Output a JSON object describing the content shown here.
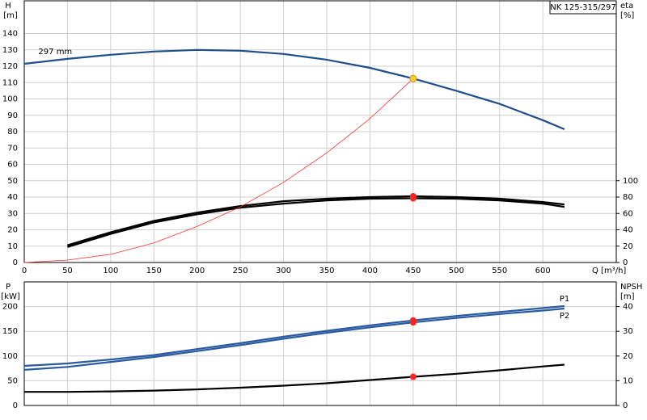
{
  "chart_data": [
    {
      "type": "line",
      "title": "NK 125-315/297",
      "annotation": "297 mm",
      "ylabel": "H",
      "yunit": "[m]",
      "y2label": "eta",
      "y2unit": "[%]",
      "xlabel": "Q [m³/h]",
      "xlim": [
        0,
        685
      ],
      "xticks": [
        0,
        50,
        100,
        150,
        200,
        250,
        300,
        350,
        400,
        450,
        500,
        550,
        600
      ],
      "ylim": [
        0,
        160
      ],
      "yticks": [
        0,
        10,
        20,
        30,
        40,
        50,
        60,
        70,
        80,
        90,
        100,
        110,
        120,
        130,
        140
      ],
      "y2lim": [
        0,
        320
      ],
      "y2ticks": [
        0,
        20,
        40,
        60,
        80,
        100
      ],
      "grid": true,
      "xtick_labels": true,
      "series": [
        {
          "color": "#1f4e8c",
          "x": [
            0,
            50,
            100,
            150,
            200,
            250,
            300,
            350,
            400,
            450,
            500,
            550,
            600,
            625
          ],
          "values": [
            121.5,
            124.5,
            127,
            129,
            130,
            129.5,
            127.5,
            124,
            119,
            112.5,
            105,
            97,
            87,
            81.5
          ]
        },
        {
          "color": "#000000",
          "axis": "y2",
          "x": [
            50,
            100,
            150,
            200,
            250,
            300,
            350,
            400,
            450,
            500,
            550,
            600,
            625
          ],
          "values": [
            21,
            37,
            51,
            61,
            69,
            75,
            78,
            80,
            81,
            80,
            78,
            74,
            71
          ]
        },
        {
          "color": "#000000",
          "axis": "y2",
          "x": [
            50,
            100,
            150,
            200,
            250,
            300,
            350,
            400,
            450,
            500,
            550,
            600,
            625
          ],
          "values": [
            19,
            35,
            49,
            59,
            67,
            72,
            76,
            78,
            78.5,
            78,
            76,
            72,
            68
          ]
        },
        {
          "color": "#ff3333",
          "x": [
            0,
            50,
            100,
            150,
            200,
            250,
            300,
            350,
            400,
            450
          ],
          "values": [
            0,
            1.5,
            5,
            12,
            22,
            34,
            49,
            67,
            88,
            112.5
          ]
        }
      ],
      "points": [
        {
          "x": 450,
          "y": 112.5,
          "color": "#ffcc33"
        },
        {
          "x": 450,
          "y": 81,
          "axis": "y2",
          "color": "#ff2222"
        },
        {
          "x": 450,
          "y": 78.5,
          "axis": "y2",
          "color": "#ff2222"
        }
      ]
    },
    {
      "type": "line",
      "ylabel": "P",
      "yunit": "[kW]",
      "y2label": "NPSH",
      "y2unit": "[m]",
      "xlim": [
        0,
        685
      ],
      "xticks": [
        0,
        50,
        100,
        150,
        200,
        250,
        300,
        350,
        400,
        450,
        500,
        550,
        600
      ],
      "ylim": [
        0,
        250
      ],
      "yticks": [
        0,
        50,
        100,
        150,
        200
      ],
      "y2lim": [
        0,
        50
      ],
      "y2ticks": [
        0,
        10,
        20,
        30,
        40
      ],
      "grid": true,
      "xtick_labels": false,
      "series": [
        {
          "name": "P1",
          "color": "#2a5aa0",
          "x": [
            0,
            50,
            100,
            150,
            200,
            250,
            300,
            350,
            400,
            450,
            500,
            550,
            600,
            625
          ],
          "values": [
            80,
            85,
            93,
            102,
            114,
            126,
            139,
            151,
            162,
            172,
            181,
            189,
            197,
            201
          ]
        },
        {
          "name": "P2",
          "color": "#2a5aa0",
          "x": [
            0,
            50,
            100,
            150,
            200,
            250,
            300,
            350,
            400,
            450,
            500,
            550,
            600,
            625
          ],
          "values": [
            72,
            78,
            88,
            98,
            110,
            122,
            135,
            147,
            158,
            168,
            177,
            185,
            192,
            196
          ]
        },
        {
          "color": "#000000",
          "axis": "y2",
          "x": [
            0,
            50,
            100,
            150,
            200,
            250,
            300,
            350,
            400,
            450,
            500,
            550,
            600,
            625
          ],
          "values": [
            5.5,
            5.5,
            5.7,
            6,
            6.5,
            7.2,
            8,
            9,
            10.3,
            11.6,
            12.8,
            14.2,
            15.8,
            16.5
          ]
        }
      ],
      "points": [
        {
          "x": 450,
          "y": 172,
          "color": "#ff2222"
        },
        {
          "x": 450,
          "y": 168,
          "color": "#ff2222"
        },
        {
          "x": 450,
          "y": 11.6,
          "axis": "y2",
          "color": "#ff2222"
        }
      ]
    }
  ]
}
